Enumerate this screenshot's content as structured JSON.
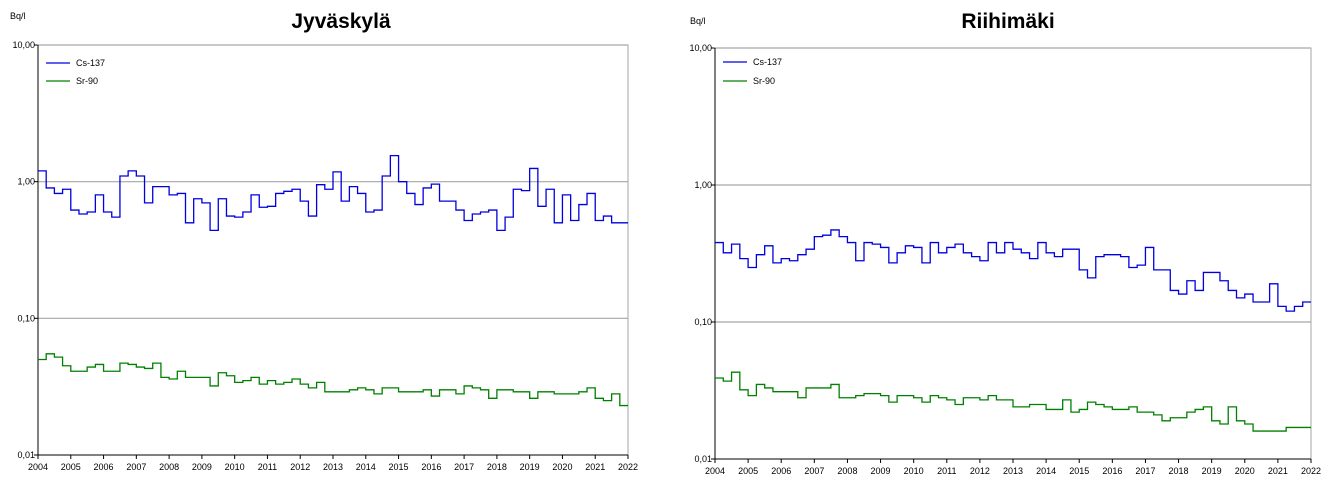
{
  "chart_data": [
    {
      "type": "line",
      "title": "Jyväskylä",
      "ylabel": "Bq/l",
      "xlabel": "",
      "yscale": "log",
      "ylim": [
        0.01,
        10
      ],
      "xlim": [
        2004,
        2022
      ],
      "y_tick_labels": [
        "0,01",
        "0,10",
        "1,00",
        "10,00"
      ],
      "x_tick_labels": [
        "2004",
        "2005",
        "2006",
        "2007",
        "2008",
        "2009",
        "2010",
        "2011",
        "2012",
        "2013",
        "2014",
        "2015",
        "2016",
        "2017",
        "2018",
        "2019",
        "2020",
        "2021",
        "2022"
      ],
      "grid": "horizontal major",
      "legend_position": "top-left",
      "series": [
        {
          "name": "Cs-137",
          "color": "#0000e0",
          "step": true,
          "x": [
            2004.0,
            2004.25,
            2004.5,
            2004.75,
            2005.0,
            2005.25,
            2005.5,
            2005.75,
            2006.0,
            2006.25,
            2006.5,
            2006.75,
            2007.0,
            2007.25,
            2007.5,
            2007.75,
            2008.0,
            2008.25,
            2008.5,
            2008.75,
            2009.0,
            2009.25,
            2009.5,
            2009.75,
            2010.0,
            2010.25,
            2010.5,
            2010.75,
            2011.0,
            2011.25,
            2011.5,
            2011.75,
            2012.0,
            2012.25,
            2012.5,
            2012.75,
            2013.0,
            2013.25,
            2013.5,
            2013.75,
            2014.0,
            2014.25,
            2014.5,
            2014.75,
            2015.0,
            2015.25,
            2015.5,
            2015.75,
            2016.0,
            2016.25,
            2016.5,
            2016.75,
            2017.0,
            2017.25,
            2017.5,
            2017.75,
            2018.0,
            2018.25,
            2018.5,
            2018.75,
            2019.0,
            2019.25,
            2019.5,
            2019.75,
            2020.0,
            2020.25,
            2020.5,
            2020.75,
            2021.0,
            2021.25,
            2021.5,
            2021.75
          ],
          "values": [
            1.2,
            0.9,
            0.82,
            0.88,
            0.62,
            0.58,
            0.6,
            0.8,
            0.6,
            0.55,
            1.1,
            1.2,
            1.1,
            0.7,
            0.92,
            0.92,
            0.8,
            0.82,
            0.5,
            0.75,
            0.7,
            0.44,
            0.75,
            0.56,
            0.55,
            0.6,
            0.8,
            0.65,
            0.66,
            0.82,
            0.85,
            0.88,
            0.72,
            0.56,
            0.95,
            0.88,
            1.18,
            0.72,
            0.92,
            0.82,
            0.6,
            0.62,
            1.1,
            1.55,
            1.0,
            0.82,
            0.68,
            0.9,
            0.96,
            0.72,
            0.72,
            0.62,
            0.52,
            0.58,
            0.6,
            0.62,
            0.44,
            0.55,
            0.88,
            0.86,
            1.25,
            0.66,
            0.88,
            0.5,
            0.8,
            0.52,
            0.68,
            0.82,
            0.52,
            0.56,
            0.5,
            0.5
          ]
        },
        {
          "name": "Sr-90",
          "color": "#008000",
          "step": true,
          "x": [
            2004.0,
            2004.25,
            2004.5,
            2004.75,
            2005.0,
            2005.25,
            2005.5,
            2005.75,
            2006.0,
            2006.25,
            2006.5,
            2006.75,
            2007.0,
            2007.25,
            2007.5,
            2007.75,
            2008.0,
            2008.25,
            2008.5,
            2008.75,
            2009.0,
            2009.25,
            2009.5,
            2009.75,
            2010.0,
            2010.25,
            2010.5,
            2010.75,
            2011.0,
            2011.25,
            2011.5,
            2011.75,
            2012.0,
            2012.25,
            2012.5,
            2012.75,
            2013.0,
            2013.25,
            2013.5,
            2013.75,
            2014.0,
            2014.25,
            2014.5,
            2014.75,
            2015.0,
            2015.25,
            2015.5,
            2015.75,
            2016.0,
            2016.25,
            2016.5,
            2016.75,
            2017.0,
            2017.25,
            2017.5,
            2017.75,
            2018.0,
            2018.25,
            2018.5,
            2018.75,
            2019.0,
            2019.25,
            2019.5,
            2019.75,
            2020.0,
            2020.25,
            2020.5,
            2020.75,
            2021.0,
            2021.25,
            2021.5,
            2021.75
          ],
          "values": [
            0.05,
            0.055,
            0.052,
            0.045,
            0.041,
            0.041,
            0.044,
            0.046,
            0.041,
            0.041,
            0.047,
            0.046,
            0.044,
            0.043,
            0.047,
            0.037,
            0.036,
            0.041,
            0.037,
            0.037,
            0.037,
            0.032,
            0.04,
            0.038,
            0.034,
            0.035,
            0.037,
            0.033,
            0.035,
            0.033,
            0.034,
            0.036,
            0.033,
            0.031,
            0.034,
            0.029,
            0.029,
            0.029,
            0.03,
            0.031,
            0.03,
            0.028,
            0.031,
            0.031,
            0.029,
            0.029,
            0.029,
            0.03,
            0.027,
            0.03,
            0.03,
            0.028,
            0.032,
            0.031,
            0.03,
            0.026,
            0.03,
            0.03,
            0.029,
            0.029,
            0.026,
            0.029,
            0.029,
            0.028,
            0.028,
            0.028,
            0.029,
            0.031,
            0.026,
            0.025,
            0.028,
            0.023
          ]
        }
      ]
    },
    {
      "type": "line",
      "title": "Riihimäki",
      "ylabel": "Bq/l",
      "xlabel": "",
      "yscale": "log",
      "ylim": [
        0.01,
        10
      ],
      "xlim": [
        2004,
        2022
      ],
      "y_tick_labels": [
        "0,01",
        "0,10",
        "1,00",
        "10,00"
      ],
      "x_tick_labels": [
        "2004",
        "2005",
        "2006",
        "2007",
        "2008",
        "2009",
        "2010",
        "2011",
        "2012",
        "2013",
        "2014",
        "2015",
        "2016",
        "2017",
        "2018",
        "2019",
        "2020",
        "2021",
        "2022"
      ],
      "grid": "horizontal major",
      "legend_position": "top-left",
      "series": [
        {
          "name": "Cs-137",
          "color": "#0000e0",
          "step": true,
          "x": [
            2004.0,
            2004.25,
            2004.5,
            2004.75,
            2005.0,
            2005.25,
            2005.5,
            2005.75,
            2006.0,
            2006.25,
            2006.5,
            2006.75,
            2007.0,
            2007.25,
            2007.5,
            2007.75,
            2008.0,
            2008.25,
            2008.5,
            2008.75,
            2009.0,
            2009.25,
            2009.5,
            2009.75,
            2010.0,
            2010.25,
            2010.5,
            2010.75,
            2011.0,
            2011.25,
            2011.5,
            2011.75,
            2012.0,
            2012.25,
            2012.5,
            2012.75,
            2013.0,
            2013.25,
            2013.5,
            2013.75,
            2014.0,
            2014.25,
            2014.5,
            2014.75,
            2015.0,
            2015.25,
            2015.5,
            2015.75,
            2016.0,
            2016.25,
            2016.5,
            2016.75,
            2017.0,
            2017.25,
            2017.5,
            2017.75,
            2018.0,
            2018.25,
            2018.5,
            2018.75,
            2019.0,
            2019.25,
            2019.5,
            2019.75,
            2020.0,
            2020.25,
            2020.5,
            2020.75,
            2021.0,
            2021.25,
            2021.5,
            2021.75
          ],
          "values": [
            0.38,
            0.32,
            0.37,
            0.29,
            0.25,
            0.31,
            0.36,
            0.27,
            0.29,
            0.28,
            0.31,
            0.34,
            0.42,
            0.43,
            0.47,
            0.42,
            0.38,
            0.28,
            0.38,
            0.37,
            0.35,
            0.27,
            0.32,
            0.36,
            0.35,
            0.27,
            0.38,
            0.32,
            0.35,
            0.37,
            0.32,
            0.3,
            0.28,
            0.38,
            0.32,
            0.38,
            0.34,
            0.32,
            0.29,
            0.38,
            0.32,
            0.3,
            0.34,
            0.34,
            0.24,
            0.21,
            0.3,
            0.31,
            0.31,
            0.3,
            0.25,
            0.26,
            0.35,
            0.24,
            0.24,
            0.17,
            0.16,
            0.2,
            0.17,
            0.23,
            0.23,
            0.2,
            0.17,
            0.15,
            0.16,
            0.14,
            0.14,
            0.19,
            0.13,
            0.12,
            0.13,
            0.14
          ]
        },
        {
          "name": "Sr-90",
          "color": "#008000",
          "step": true,
          "x": [
            2004.0,
            2004.25,
            2004.5,
            2004.75,
            2005.0,
            2005.25,
            2005.5,
            2005.75,
            2006.0,
            2006.25,
            2006.5,
            2006.75,
            2007.0,
            2007.25,
            2007.5,
            2007.75,
            2008.0,
            2008.25,
            2008.5,
            2008.75,
            2009.0,
            2009.25,
            2009.5,
            2009.75,
            2010.0,
            2010.25,
            2010.5,
            2010.75,
            2011.0,
            2011.25,
            2011.5,
            2011.75,
            2012.0,
            2012.25,
            2012.5,
            2012.75,
            2013.0,
            2013.25,
            2013.5,
            2013.75,
            2014.0,
            2014.25,
            2014.5,
            2014.75,
            2015.0,
            2015.25,
            2015.5,
            2015.75,
            2016.0,
            2016.25,
            2016.5,
            2016.75,
            2017.0,
            2017.25,
            2017.5,
            2017.75,
            2018.0,
            2018.25,
            2018.5,
            2018.75,
            2019.0,
            2019.25,
            2019.5,
            2019.75,
            2020.0,
            2020.25,
            2020.5,
            2020.75,
            2021.0,
            2021.25,
            2021.5,
            2021.75
          ],
          "values": [
            0.039,
            0.037,
            0.043,
            0.032,
            0.029,
            0.035,
            0.033,
            0.031,
            0.031,
            0.031,
            0.028,
            0.033,
            0.033,
            0.033,
            0.035,
            0.028,
            0.028,
            0.029,
            0.03,
            0.03,
            0.029,
            0.026,
            0.029,
            0.029,
            0.028,
            0.026,
            0.029,
            0.028,
            0.027,
            0.025,
            0.028,
            0.028,
            0.027,
            0.029,
            0.027,
            0.027,
            0.024,
            0.024,
            0.025,
            0.025,
            0.023,
            0.023,
            0.027,
            0.022,
            0.023,
            0.026,
            0.025,
            0.024,
            0.023,
            0.023,
            0.024,
            0.022,
            0.022,
            0.021,
            0.019,
            0.02,
            0.02,
            0.022,
            0.023,
            0.024,
            0.019,
            0.018,
            0.024,
            0.019,
            0.018,
            0.016,
            0.016,
            0.016,
            0.016,
            0.017,
            0.017,
            0.017
          ]
        }
      ]
    }
  ]
}
